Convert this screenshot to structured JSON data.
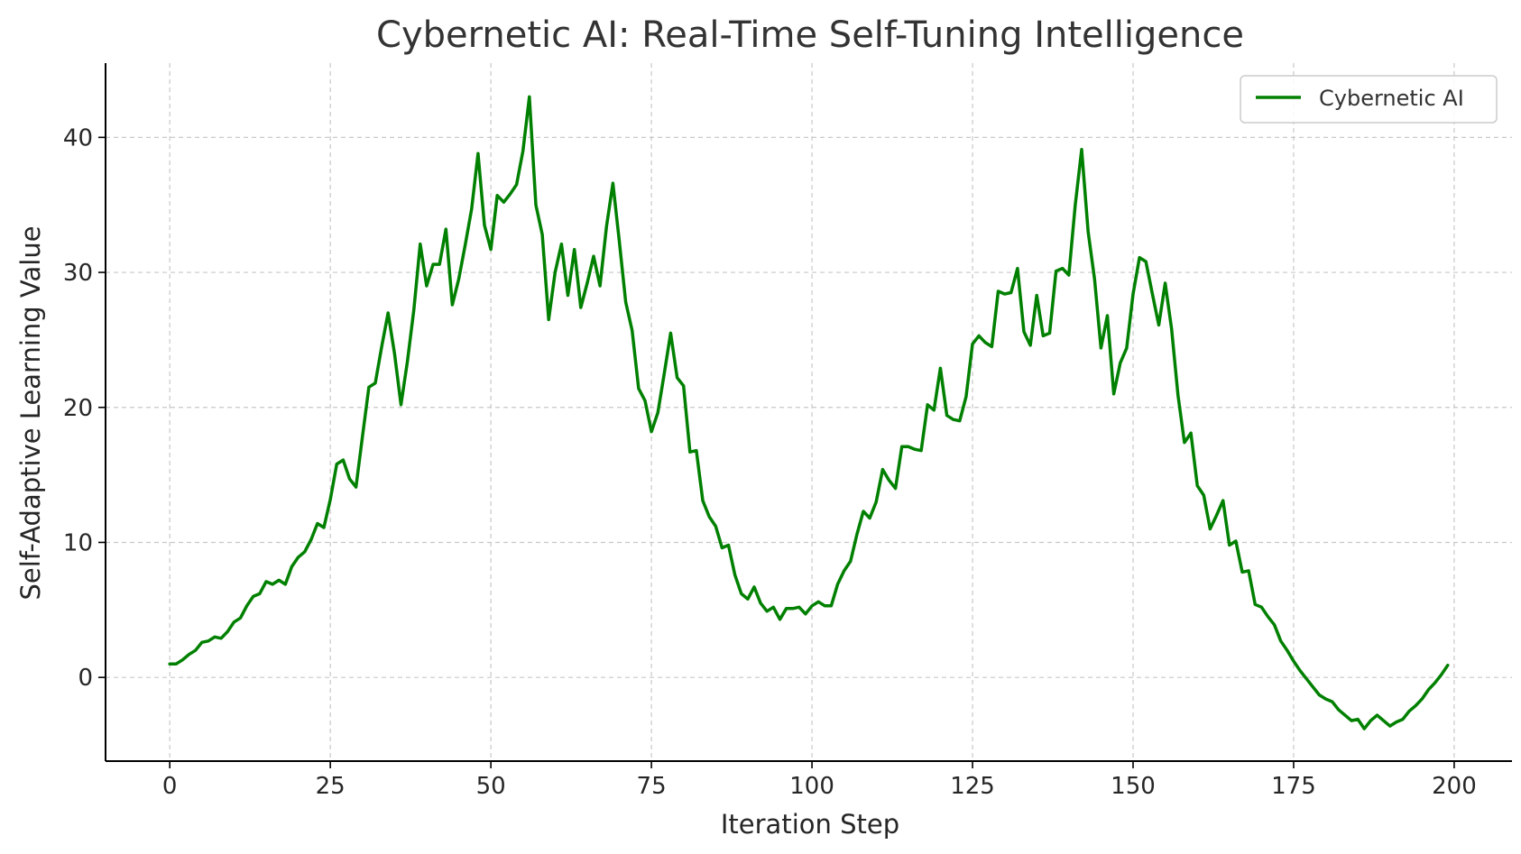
{
  "chart_data": {
    "type": "line",
    "title": "Cybernetic AI: Real-Time Self-Tuning Intelligence",
    "xlabel": "Iteration Step",
    "ylabel": "Self-Adaptive Learning Value",
    "xlim": [
      -10,
      209
    ],
    "ylim": [
      -6.2,
      45.5
    ],
    "xticks": [
      0,
      25,
      50,
      75,
      100,
      125,
      150,
      175,
      200
    ],
    "yticks": [
      0,
      10,
      20,
      30,
      40
    ],
    "grid": true,
    "legend_position": "top-right",
    "series": [
      {
        "name": "Cybernetic AI",
        "color": "#008000",
        "x": [
          0,
          1,
          2,
          3,
          4,
          5,
          6,
          7,
          8,
          9,
          10,
          11,
          12,
          13,
          14,
          15,
          16,
          17,
          18,
          19,
          20,
          21,
          22,
          23,
          24,
          25,
          26,
          27,
          28,
          29,
          30,
          31,
          32,
          33,
          34,
          35,
          36,
          37,
          38,
          39,
          40,
          41,
          42,
          43,
          44,
          45,
          46,
          47,
          48,
          49,
          50,
          51,
          52,
          53,
          54,
          55,
          56,
          57,
          58,
          59,
          60,
          61,
          62,
          63,
          64,
          65,
          66,
          67,
          68,
          69,
          70,
          71,
          72,
          73,
          74,
          75,
          76,
          77,
          78,
          79,
          80,
          81,
          82,
          83,
          84,
          85,
          86,
          87,
          88,
          89,
          90,
          91,
          92,
          93,
          94,
          95,
          96,
          97,
          98,
          99,
          100,
          101,
          102,
          103,
          104,
          105,
          106,
          107,
          108,
          109,
          110,
          111,
          112,
          113,
          114,
          115,
          116,
          117,
          118,
          119,
          120,
          121,
          122,
          123,
          124,
          125,
          126,
          127,
          128,
          129,
          130,
          131,
          132,
          133,
          134,
          135,
          136,
          137,
          138,
          139,
          140,
          141,
          142,
          143,
          144,
          145,
          146,
          147,
          148,
          149,
          150,
          151,
          152,
          153,
          154,
          155,
          156,
          157,
          158,
          159,
          160,
          161,
          162,
          163,
          164,
          165,
          166,
          167,
          168,
          169,
          170,
          171,
          172,
          173,
          174,
          175,
          176,
          177,
          178,
          179,
          180,
          181,
          182,
          183,
          184,
          185,
          186,
          187,
          188,
          189,
          190,
          191,
          192,
          193,
          194,
          195,
          196,
          197,
          198,
          199
        ],
        "values": [
          1.0,
          1.0,
          1.3,
          1.7,
          2.0,
          2.6,
          2.7,
          3.0,
          2.9,
          3.4,
          4.1,
          4.4,
          5.3,
          6.0,
          6.2,
          7.1,
          6.9,
          7.2,
          6.9,
          8.2,
          8.9,
          9.3,
          10.2,
          11.4,
          11.1,
          13.2,
          15.8,
          16.1,
          14.7,
          14.1,
          17.8,
          21.5,
          21.8,
          24.5,
          27.0,
          24.0,
          20.2,
          23.4,
          27.2,
          32.1,
          29.0,
          30.6,
          30.6,
          33.2,
          27.6,
          29.5,
          32.0,
          34.7,
          38.8,
          33.5,
          31.7,
          35.7,
          35.2,
          35.8,
          36.5,
          39.0,
          43.0,
          35.0,
          32.8,
          26.5,
          30.0,
          32.1,
          28.3,
          31.7,
          27.4,
          29.2,
          31.2,
          29.0,
          33.4,
          36.6,
          32.3,
          27.8,
          25.7,
          21.4,
          20.5,
          18.2,
          19.6,
          22.5,
          25.5,
          22.2,
          21.6,
          16.7,
          16.8,
          13.1,
          11.9,
          11.2,
          9.6,
          9.8,
          7.6,
          6.2,
          5.8,
          6.7,
          5.5,
          4.9,
          5.2,
          4.3,
          5.1,
          5.1,
          5.2,
          4.7,
          5.3,
          5.6,
          5.3,
          5.3,
          6.9,
          7.9,
          8.6,
          10.6,
          12.3,
          11.8,
          13.0,
          15.4,
          14.6,
          14.0,
          17.1,
          17.1,
          16.9,
          16.8,
          20.2,
          19.8,
          22.9,
          19.4,
          19.1,
          19.0,
          20.8,
          24.7,
          25.3,
          24.8,
          24.5,
          28.6,
          28.4,
          28.5,
          30.3,
          25.6,
          24.6,
          28.3,
          25.3,
          25.5,
          30.1,
          30.3,
          29.8,
          35.0,
          39.1,
          33.0,
          29.5,
          24.4,
          26.8,
          21.0,
          23.3,
          24.4,
          28.4,
          31.1,
          30.8,
          28.4,
          26.1,
          29.2,
          25.8,
          20.9,
          17.4,
          18.1,
          14.2,
          13.5,
          11.0,
          12.0,
          13.1,
          9.8,
          10.1,
          7.8,
          7.9,
          5.4,
          5.2,
          4.5,
          3.9,
          2.7,
          2.0,
          1.2,
          0.5,
          -0.1,
          -0.7,
          -1.3,
          -1.6,
          -1.8,
          -2.4,
          -2.8,
          -3.2,
          -3.1,
          -3.8,
          -3.2,
          -2.8,
          -3.2,
          -3.6,
          -3.3,
          -3.1,
          -2.5,
          -2.1,
          -1.6,
          -0.9,
          -0.4,
          0.2,
          0.9
        ]
      }
    ]
  }
}
